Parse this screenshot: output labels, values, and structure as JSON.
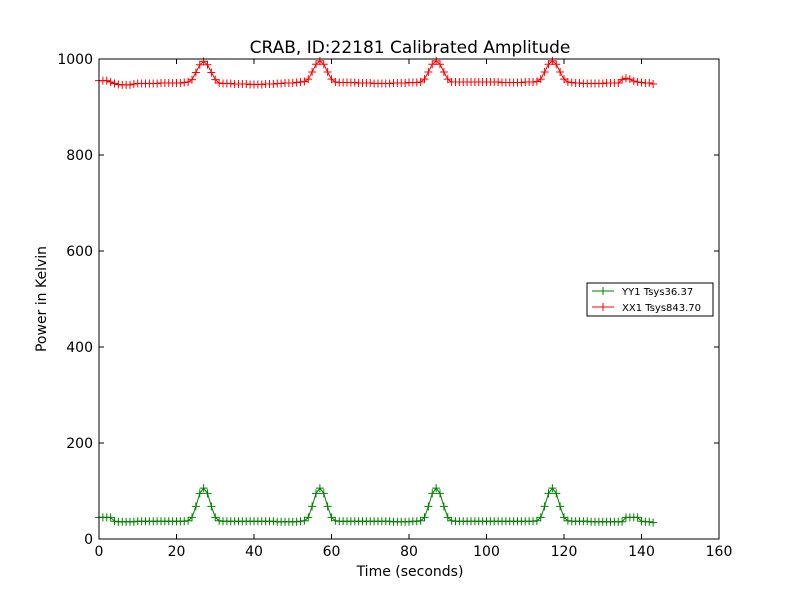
{
  "chart_data": {
    "type": "line",
    "title": "CRAB, ID:22181 Calibrated Amplitude",
    "xlabel": "Time (seconds)",
    "ylabel": "Power in Kelvin",
    "xlim": [
      0,
      160
    ],
    "ylim": [
      0,
      1000
    ],
    "xticks": [
      "0",
      "20",
      "40",
      "60",
      "80",
      "100",
      "120",
      "140",
      "160"
    ],
    "yticks": [
      "0",
      "200",
      "400",
      "600",
      "800",
      "1000"
    ],
    "grid": false,
    "legend_position": "center-right",
    "series": [
      {
        "name": "YY1 Tsys36.37",
        "color": "#008000",
        "marker": "plus",
        "x": [
          0,
          1,
          2,
          3,
          4,
          5,
          6,
          7,
          8,
          9,
          10,
          11,
          12,
          13,
          14,
          15,
          16,
          17,
          18,
          19,
          20,
          21,
          22,
          23,
          24,
          25,
          26,
          27,
          28,
          29,
          30,
          31,
          32,
          33,
          34,
          35,
          36,
          37,
          38,
          39,
          40,
          41,
          42,
          43,
          44,
          45,
          46,
          47,
          48,
          49,
          50,
          51,
          52,
          53,
          54,
          55,
          56,
          57,
          58,
          59,
          60,
          61,
          62,
          63,
          64,
          65,
          66,
          67,
          68,
          69,
          70,
          71,
          72,
          73,
          74,
          75,
          76,
          77,
          78,
          79,
          80,
          81,
          82,
          83,
          84,
          85,
          86,
          87,
          88,
          89,
          90,
          91,
          92,
          93,
          94,
          95,
          96,
          97,
          98,
          99,
          100,
          101,
          102,
          103,
          104,
          105,
          106,
          107,
          108,
          109,
          110,
          111,
          112,
          113,
          114,
          115,
          116,
          117,
          118,
          119,
          120,
          121,
          122,
          123,
          124,
          125,
          126,
          127,
          128,
          129,
          130,
          131,
          132,
          133,
          134,
          135,
          136,
          137,
          138,
          139,
          140,
          141,
          142,
          143
        ],
        "y": [
          45,
          45,
          45,
          45,
          37,
          36,
          36,
          36,
          36,
          36,
          37,
          37,
          37,
          37,
          37,
          37,
          37,
          37,
          37,
          37,
          37,
          37,
          37,
          38,
          45,
          68,
          95,
          106,
          95,
          68,
          45,
          38,
          37,
          37,
          37,
          37,
          37,
          37,
          37,
          37,
          37,
          37,
          37,
          37,
          37,
          37,
          36,
          36,
          36,
          36,
          36,
          36,
          37,
          38,
          45,
          68,
          95,
          106,
          95,
          68,
          45,
          38,
          37,
          37,
          37,
          37,
          37,
          37,
          37,
          37,
          37,
          37,
          37,
          37,
          37,
          37,
          36,
          36,
          36,
          36,
          36,
          37,
          37,
          38,
          45,
          68,
          95,
          106,
          95,
          68,
          45,
          38,
          37,
          37,
          37,
          37,
          37,
          37,
          37,
          37,
          37,
          37,
          37,
          37,
          37,
          37,
          37,
          37,
          37,
          37,
          37,
          37,
          37,
          38,
          45,
          68,
          95,
          106,
          95,
          68,
          45,
          38,
          37,
          37,
          37,
          37,
          37,
          36,
          36,
          36,
          36,
          36,
          36,
          36,
          36,
          36,
          45,
          45,
          45,
          45,
          37,
          36,
          36,
          34
        ]
      },
      {
        "name": "XX1 Tsys843.70",
        "color": "#ff0000",
        "marker": "plus",
        "x": [
          0,
          1,
          2,
          3,
          4,
          5,
          6,
          7,
          8,
          9,
          10,
          11,
          12,
          13,
          14,
          15,
          16,
          17,
          18,
          19,
          20,
          21,
          22,
          23,
          24,
          25,
          26,
          27,
          28,
          29,
          30,
          31,
          32,
          33,
          34,
          35,
          36,
          37,
          38,
          39,
          40,
          41,
          42,
          43,
          44,
          45,
          46,
          47,
          48,
          49,
          50,
          51,
          52,
          53,
          54,
          55,
          56,
          57,
          58,
          59,
          60,
          61,
          62,
          63,
          64,
          65,
          66,
          67,
          68,
          69,
          70,
          71,
          72,
          73,
          74,
          75,
          76,
          77,
          78,
          79,
          80,
          81,
          82,
          83,
          84,
          85,
          86,
          87,
          88,
          89,
          90,
          91,
          92,
          93,
          94,
          95,
          96,
          97,
          98,
          99,
          100,
          101,
          102,
          103,
          104,
          105,
          106,
          107,
          108,
          109,
          110,
          111,
          112,
          113,
          114,
          115,
          116,
          117,
          118,
          119,
          120,
          121,
          122,
          123,
          124,
          125,
          126,
          127,
          128,
          129,
          130,
          131,
          132,
          133,
          134,
          135,
          136,
          137,
          138,
          139,
          140,
          141,
          142,
          143
        ],
        "y": [
          955,
          955,
          955,
          952,
          949,
          947,
          946,
          946,
          946,
          948,
          949,
          949,
          949,
          949,
          949,
          949,
          950,
          950,
          950,
          950,
          950,
          950,
          951,
          952,
          957,
          972,
          988,
          995,
          988,
          972,
          957,
          950,
          949,
          949,
          949,
          948,
          948,
          948,
          948,
          947,
          947,
          947,
          947,
          948,
          948,
          948,
          949,
          949,
          950,
          950,
          950,
          951,
          952,
          953,
          958,
          973,
          989,
          996,
          989,
          973,
          958,
          952,
          951,
          951,
          951,
          951,
          951,
          950,
          950,
          950,
          950,
          949,
          949,
          949,
          949,
          949,
          950,
          950,
          950,
          950,
          951,
          951,
          951,
          952,
          958,
          973,
          989,
          996,
          989,
          973,
          958,
          952,
          952,
          952,
          952,
          952,
          952,
          952,
          952,
          952,
          952,
          952,
          952,
          952,
          951,
          951,
          951,
          951,
          951,
          951,
          952,
          952,
          952,
          953,
          958,
          973,
          989,
          996,
          989,
          973,
          958,
          952,
          951,
          950,
          950,
          949,
          949,
          949,
          949,
          949,
          949,
          950,
          950,
          950,
          950,
          957,
          960,
          958,
          954,
          952,
          951,
          950,
          950,
          948
        ]
      }
    ]
  }
}
